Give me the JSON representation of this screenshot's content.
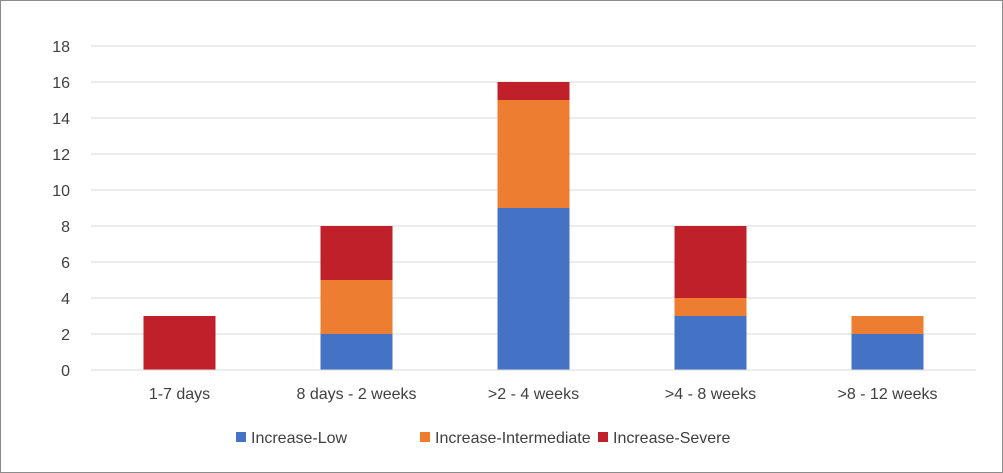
{
  "chart_data": {
    "type": "bar",
    "stacked": true,
    "title": "",
    "xlabel": "",
    "ylabel": "",
    "categories": [
      "1-7 days",
      "8 days - 2 weeks",
      ">2 - 4 weeks",
      ">4 - 8 weeks",
      ">8 - 12 weeks"
    ],
    "series": [
      {
        "name": "Increase-Low",
        "color": "#4472c4",
        "values": [
          0,
          2,
          9,
          3,
          2
        ]
      },
      {
        "name": "Increase-Intermediate",
        "color": "#ed7d31",
        "values": [
          0,
          3,
          6,
          1,
          1
        ]
      },
      {
        "name": "Increase-Severe",
        "color": "#c0202a",
        "values": [
          3,
          3,
          1,
          4,
          0
        ]
      }
    ],
    "ylim": [
      0,
      18
    ],
    "yticks": [
      "0",
      "2",
      "4",
      "6",
      "8",
      "10",
      "12",
      "14",
      "16",
      "18"
    ],
    "grid": true,
    "legend_position": "bottom"
  }
}
